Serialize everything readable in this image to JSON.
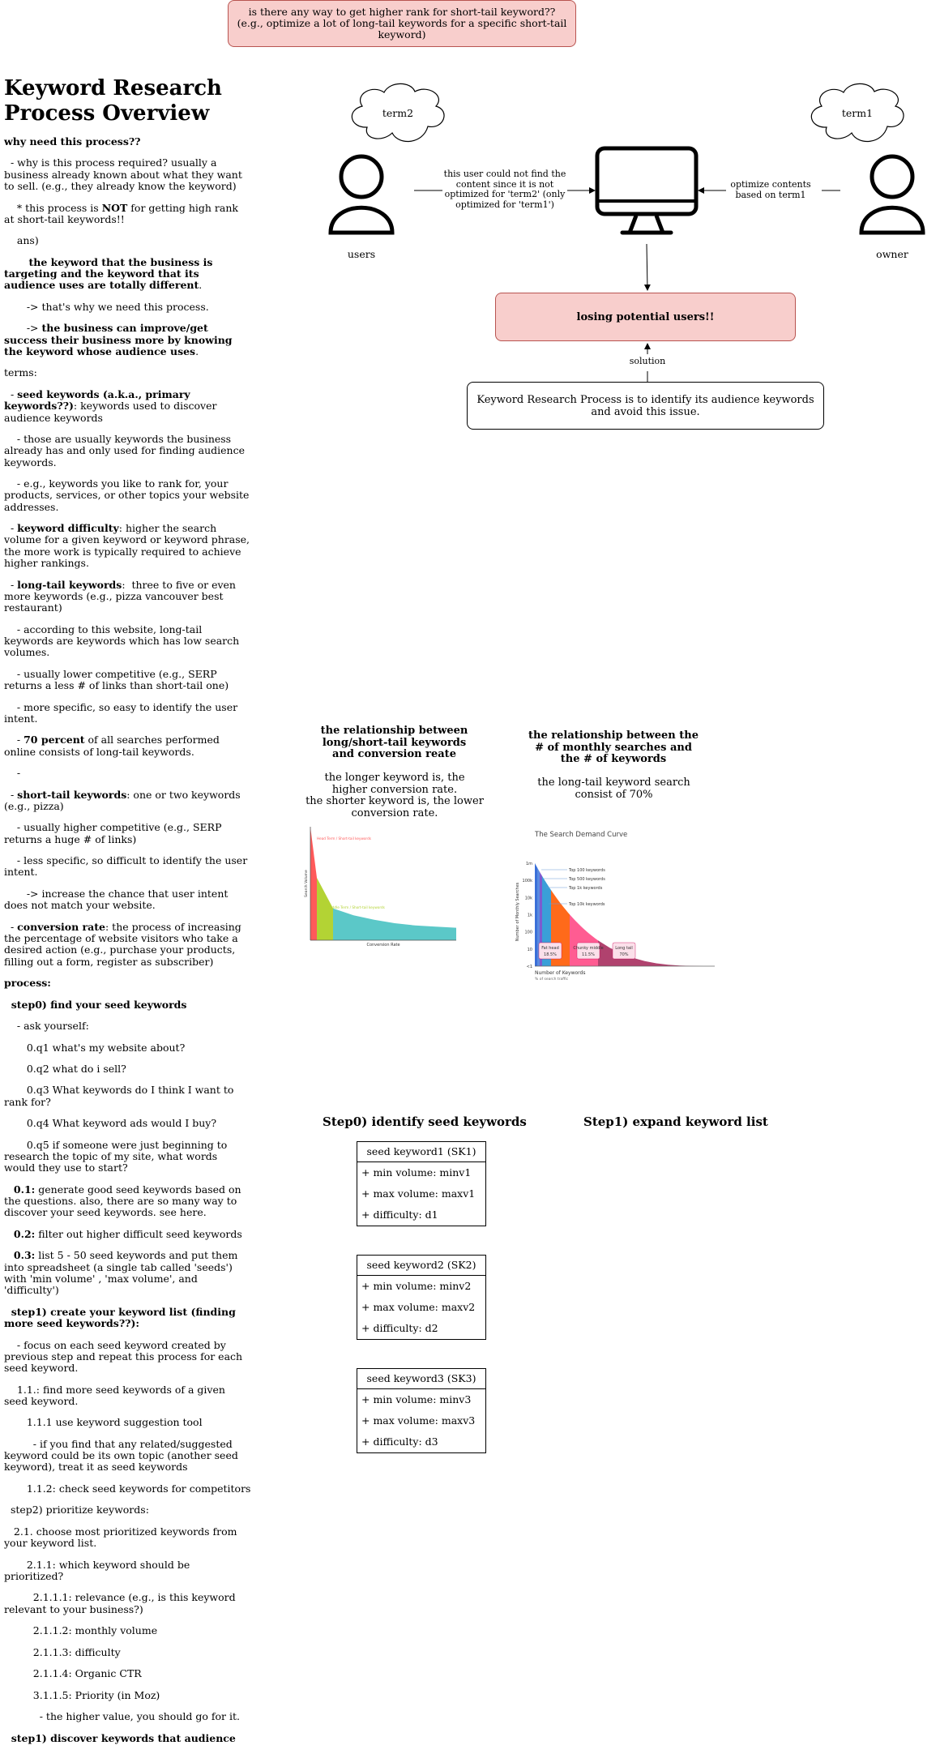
{
  "top_note": {
    "text": "is there any way to get higher rank for short-tail keyword?? (e.g., optimize a lot of long-tail keywords for a specific short-tail keyword)"
  },
  "page_title": "Keyword Research Process Overview",
  "notes": [
    [
      {
        "t": "why need this process??",
        "b": true
      }
    ],
    [
      {
        "t": "  - why is this process required? usually a business already known about what they want to sell. (e.g., they already know the keyword)"
      }
    ],
    [
      {
        "t": "    * this process is "
      },
      {
        "t": "NOT",
        "b": true
      },
      {
        "t": " for getting high rank at short-tail keywords!!"
      }
    ],
    [
      {
        "t": "    ans)"
      }
    ],
    [
      {
        "t": "       the keyword that the business is targeting and the keyword that its audience uses are totally different",
        "b": true
      },
      {
        "t": "."
      }
    ],
    [
      {
        "t": "       -> that's why we need this process."
      }
    ],
    [
      {
        "t": "       -> "
      },
      {
        "t": "the business can improve/get success their business more by knowing the keyword whose audience uses",
        "b": true
      },
      {
        "t": "."
      }
    ],
    [
      {
        "t": "terms:"
      }
    ],
    [
      {
        "t": "  - "
      },
      {
        "t": "seed keywords (a.k.a., primary keywords??)",
        "b": true
      },
      {
        "t": ": keywords used to discover audience keywords"
      }
    ],
    [
      {
        "t": "    - those are usually keywords the business already has and only used for finding audience keywords."
      }
    ],
    [
      {
        "t": "    - e.g., keywords you like to rank for, your products, services, or other topics your website addresses."
      }
    ],
    [
      {
        "t": "  - "
      },
      {
        "t": "keyword difficulty",
        "b": true
      },
      {
        "t": ": higher the search volume for a given keyword or keyword phrase, the more work is typically required to achieve higher rankings."
      }
    ],
    [
      {
        "t": "  - "
      },
      {
        "t": "long-tail keywords",
        "b": true
      },
      {
        "t": ":  three to five or even more keywords (e.g., pizza vancouver best restaurant)"
      }
    ],
    [
      {
        "t": "    - according to this website, long-tail keywords are keywords which has low search volumes."
      }
    ],
    [
      {
        "t": "    - usually lower competitive (e.g., SERP returns a less # of links than short-tail one)"
      }
    ],
    [
      {
        "t": "    - more specific, so easy to identify the user intent."
      }
    ],
    [
      {
        "t": "    - "
      },
      {
        "t": "70 percent",
        "b": true
      },
      {
        "t": " of all searches performed online consists of long-tail keywords."
      }
    ],
    [
      {
        "t": "    -"
      }
    ],
    [
      {
        "t": "  - "
      },
      {
        "t": "short-tail keywords",
        "b": true
      },
      {
        "t": ": one or two keywords (e.g., pizza)"
      }
    ],
    [
      {
        "t": "    - usually higher competitive (e.g., SERP returns a huge # of links)"
      }
    ],
    [
      {
        "t": "    - less specific, so difficult to identify the user intent."
      }
    ],
    [
      {
        "t": "       -> increase the chance that user intent does not match your website."
      }
    ],
    [
      {
        "t": "  - "
      },
      {
        "t": "conversion rate",
        "b": true
      },
      {
        "t": ": the process of increasing the percentage of website visitors who take a desired action (e.g., purchase your products, filling out a form, register as subscriber)"
      }
    ],
    [
      {
        "t": "process:",
        "b": true
      }
    ],
    [
      {
        "t": "  step0) find your seed keywords",
        "b": true
      }
    ],
    [
      {
        "t": "    - ask yourself:"
      }
    ],
    [
      {
        "t": "       0.q1 what's my website about?"
      }
    ],
    [
      {
        "t": "       0.q2 what do i sell?"
      }
    ],
    [
      {
        "t": "       0.q3 What keywords do I think I want to rank for?"
      }
    ],
    [
      {
        "t": "       0.q4 What keyword ads would I buy?"
      }
    ],
    [
      {
        "t": "       0.q5 if someone were just beginning to research the topic of my site, what words would they use to start?"
      }
    ],
    [
      {
        "t": "   "
      },
      {
        "t": "0.1:",
        "b": true
      },
      {
        "t": " generate good seed keywords based on the questions. also, there are so many way to discover your seed keywords. see here."
      }
    ],
    [
      {
        "t": "   "
      },
      {
        "t": "0.2:",
        "b": true
      },
      {
        "t": " filter out higher difficult seed keywords"
      }
    ],
    [
      {
        "t": "   "
      },
      {
        "t": "0.3:",
        "b": true
      },
      {
        "t": " list 5 - 50 seed keywords and put them into spreadsheet (a single tab called 'seeds') with 'min volume' , 'max volume', and 'difficulty')"
      }
    ],
    [
      {
        "t": "  step1) create your keyword list (finding more seed keywords??):",
        "b": true
      }
    ],
    [
      {
        "t": "    - focus on each seed keyword created by previous step and repeat this process for each seed keyword."
      }
    ],
    [
      {
        "t": "    1.1.: find more seed keywords of a given seed keyword."
      }
    ],
    [
      {
        "t": "       1.1.1 use keyword suggestion tool"
      }
    ],
    [
      {
        "t": "         - if you find that any related/suggested keyword could be its own topic (another seed keyword), treat it as seed keywords"
      }
    ],
    [
      {
        "t": "       1.1.2: check seed keywords for competitors"
      }
    ],
    [
      {
        "t": "  step2) prioritize keywords:"
      }
    ],
    [
      {
        "t": "   2.1. choose most prioritized keywords from your keyword list."
      }
    ],
    [
      {
        "t": "       2.1.1: which keyword should be prioritized?"
      }
    ],
    [
      {
        "t": "         2.1.1.1: relevance (e.g., is this keyword relevant to your business?)"
      }
    ],
    [
      {
        "t": "         2.1.1.2: monthly volume"
      }
    ],
    [
      {
        "t": "         2.1.1.3: difficulty"
      }
    ],
    [
      {
        "t": "         2.1.1.4: Organic CTR"
      }
    ],
    [
      {
        "t": "         3.1.1.5: Priority (in Moz)"
      }
    ],
    [
      {
        "t": "           - the higher value, you should go for it."
      }
    ],
    [
      {
        "t": ""
      }
    ],
    [
      {
        "t": "  step1) discover keywords that audience",
        "b": true
      }
    ]
  ],
  "diagram": {
    "cloud_term2": "term2",
    "cloud_term1": "term1",
    "users_label": "users",
    "owner_label": "owner",
    "users_edge_label": "this user could not find the content since it is not optimized for 'term2' (only optimized for 'term1')",
    "owner_edge_label": "optimize contents based on term1",
    "loss_box": "losing potential users!!",
    "solution_edge_label": "solution",
    "solution_box": "Keyword Research Process is to identify its audience keywords and avoid this issue."
  },
  "relationship1": {
    "title": "the relationship between long/short-tail keywords and conversion reate",
    "desc1": "the longer keyword is, the higher conversion rate.",
    "desc2": "the shorter keyword is, the lower conversion rate."
  },
  "relationship2": {
    "title": "the relationship between the # of monthly searches and the # of keywords",
    "desc": "the long-tail keyword search consist of 70%"
  },
  "chart_data": [
    {
      "type": "area",
      "title": "",
      "xlabel": "Conversion Rate",
      "ylabel": "Search Volume",
      "series": [
        {
          "name": "Head Term / Short-tail keywords",
          "values": [
            100,
            55
          ]
        },
        {
          "name": "Middle Term / Short-tail keywords",
          "values": [
            55,
            28
          ]
        },
        {
          "name": "Long Tail / Long-tail keywords",
          "values": [
            28,
            22,
            18,
            15,
            13,
            12,
            11
          ]
        }
      ]
    },
    {
      "type": "area",
      "title": "The Search Demand Curve",
      "xlabel": "Number of Keywords",
      "ylabel": "Number of Monthly Searches",
      "xnote": "% of search traffic",
      "yticks": [
        "1m",
        "100k",
        "10k",
        "1k",
        "100",
        "10",
        "<1"
      ],
      "callouts": [
        "Top 100 keywords",
        "Top 500 keywords",
        "Top 1k keywords",
        "Top 10k keywords"
      ],
      "segments": [
        {
          "name": "Fat head",
          "share": "18.5%"
        },
        {
          "name": "Chunky middle",
          "share": "11.5%"
        },
        {
          "name": "Long tail",
          "share": "70%"
        }
      ]
    }
  ],
  "steps": {
    "step0_title": "Step0) identify seed keywords",
    "step1_title": "Step1) expand keyword list"
  },
  "seed_entities": [
    {
      "name": "seed keyword1 (SK1)",
      "rows": [
        "+ min volume: minv1",
        "+ max volume: maxv1",
        "+ difficulty: d1"
      ]
    },
    {
      "name": "seed keyword2 (SK2)",
      "rows": [
        "+ min volume: minv2",
        "+ max volume: maxv2",
        "+ difficulty: d2"
      ]
    },
    {
      "name": "seed keyword3 (SK3)",
      "rows": [
        "+ min volume: minv3",
        "+ max volume: maxv3",
        "+ difficulty: d3"
      ]
    }
  ],
  "colors": {
    "alert_fill": "#f8cecc",
    "alert_stroke": "#b85450",
    "head": "#ff5a5a",
    "middle": "#b3d334",
    "long_tail": "#5bc8c8"
  }
}
